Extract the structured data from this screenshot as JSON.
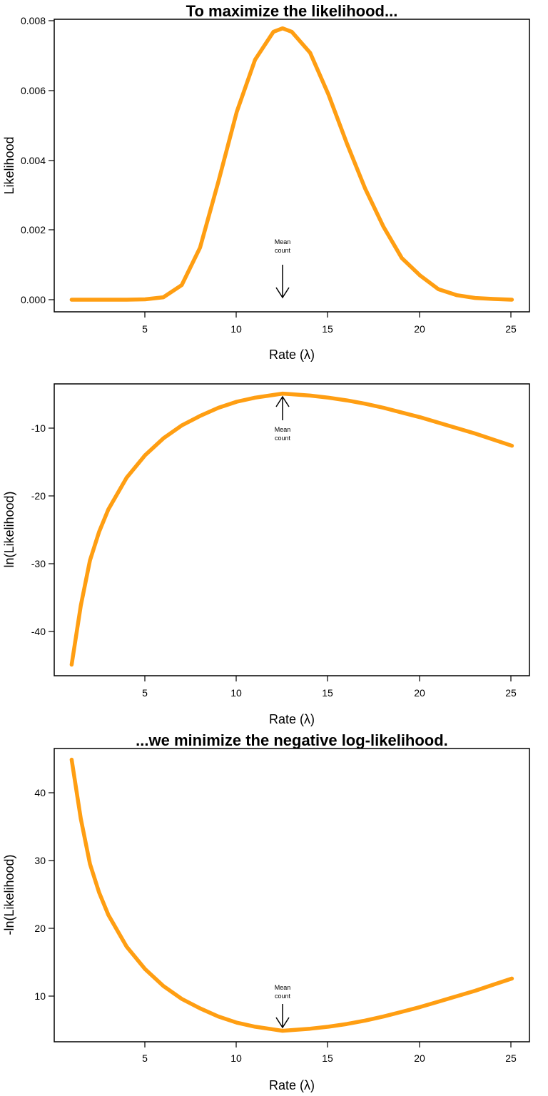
{
  "chart_data": [
    {
      "type": "line",
      "title": "To maximize the likelihood...",
      "xlabel": "Rate (λ)",
      "ylabel": "Likelihood",
      "xlim": [
        1,
        25
      ],
      "ylim": [
        0,
        0.008
      ],
      "xticks": [
        5,
        10,
        15,
        20,
        25
      ],
      "xtick_labels": [
        "5",
        "10",
        "15",
        "20",
        "25"
      ],
      "yticks": [
        0,
        0.002,
        0.004,
        0.006,
        0.008
      ],
      "ytick_labels": [
        "0.000",
        "0.002",
        "0.004",
        "0.006",
        "0.008"
      ],
      "grid": false,
      "legend": "none",
      "series": [
        {
          "color": "#ff9e12",
          "x": [
            1,
            2,
            3,
            4,
            5,
            6,
            7,
            8,
            9,
            10,
            11,
            12,
            12.5,
            13,
            14,
            15,
            16,
            17,
            18,
            19,
            20,
            21,
            22,
            23,
            24,
            25
          ],
          "values": [
            0,
            0,
            0,
            0,
            1e-05,
            7e-05,
            0.00042,
            0.0015,
            0.0034,
            0.0054,
            0.0069,
            0.0077,
            0.0078,
            0.0077,
            0.0071,
            0.0059,
            0.0045,
            0.0032,
            0.0021,
            0.0012,
            0.0007,
            0.0003,
            0.00013,
            5e-05,
            2e-05,
            0
          ]
        }
      ],
      "annotation": {
        "text": [
          "Mean",
          "count"
        ],
        "x": 12.5,
        "direction": "down"
      }
    },
    {
      "type": "line",
      "title": "",
      "xlabel": "Rate (λ)",
      "ylabel": "ln(Likelihood)",
      "xlim": [
        1,
        25
      ],
      "ylim": [
        -46,
        -4
      ],
      "xticks": [
        5,
        10,
        15,
        20,
        25
      ],
      "xtick_labels": [
        "5",
        "10",
        "15",
        "20",
        "25"
      ],
      "yticks": [
        -40,
        -30,
        -20,
        -10
      ],
      "ytick_labels": [
        "-40",
        "-30",
        "-20",
        "-10"
      ],
      "grid": false,
      "legend": "none",
      "series": [
        {
          "color": "#ff9e12",
          "x": [
            1,
            1.5,
            2,
            2.5,
            3,
            4,
            5,
            6,
            7,
            8,
            9,
            10,
            11,
            12,
            12.5,
            13,
            14,
            15,
            16,
            17,
            18,
            19,
            20,
            21,
            22,
            23,
            24,
            25
          ],
          "values": [
            -44.9,
            -36.2,
            -29.5,
            -25.3,
            -22.0,
            -17.3,
            -14.0,
            -11.5,
            -9.6,
            -8.2,
            -7.0,
            -6.1,
            -5.5,
            -5.1,
            -4.9,
            -5.0,
            -5.2,
            -5.5,
            -5.9,
            -6.4,
            -7.0,
            -7.7,
            -8.4,
            -9.2,
            -10.0,
            -10.8,
            -11.7,
            -12.6
          ]
        }
      ],
      "annotation": {
        "text": [
          "Mean",
          "count"
        ],
        "x": 12.5,
        "direction": "up"
      }
    },
    {
      "type": "line",
      "title": "...we minimize the negative log-likelihood.",
      "xlabel": "Rate (λ)",
      "ylabel": "-ln(Likelihood)",
      "xlim": [
        1,
        25
      ],
      "ylim": [
        3.5,
        46
      ],
      "xticks": [
        5,
        10,
        15,
        20,
        25
      ],
      "xtick_labels": [
        "5",
        "10",
        "15",
        "20",
        "25"
      ],
      "yticks": [
        10,
        20,
        30,
        40
      ],
      "ytick_labels": [
        "10",
        "20",
        "30",
        "40"
      ],
      "grid": false,
      "legend": "none",
      "series": [
        {
          "color": "#ff9e12",
          "x": [
            1,
            1.5,
            2,
            2.5,
            3,
            4,
            5,
            6,
            7,
            8,
            9,
            10,
            11,
            12,
            12.5,
            13,
            14,
            15,
            16,
            17,
            18,
            19,
            20,
            21,
            22,
            23,
            24,
            25
          ],
          "values": [
            44.9,
            36.2,
            29.5,
            25.3,
            22.0,
            17.3,
            14.0,
            11.5,
            9.6,
            8.2,
            7.0,
            6.1,
            5.5,
            5.1,
            4.9,
            5.0,
            5.2,
            5.5,
            5.9,
            6.4,
            7.0,
            7.7,
            8.4,
            9.2,
            10.0,
            10.8,
            11.7,
            12.6
          ]
        }
      ],
      "annotation": {
        "text": [
          "Mean",
          "count"
        ],
        "x": 12.5,
        "direction": "down"
      }
    }
  ]
}
